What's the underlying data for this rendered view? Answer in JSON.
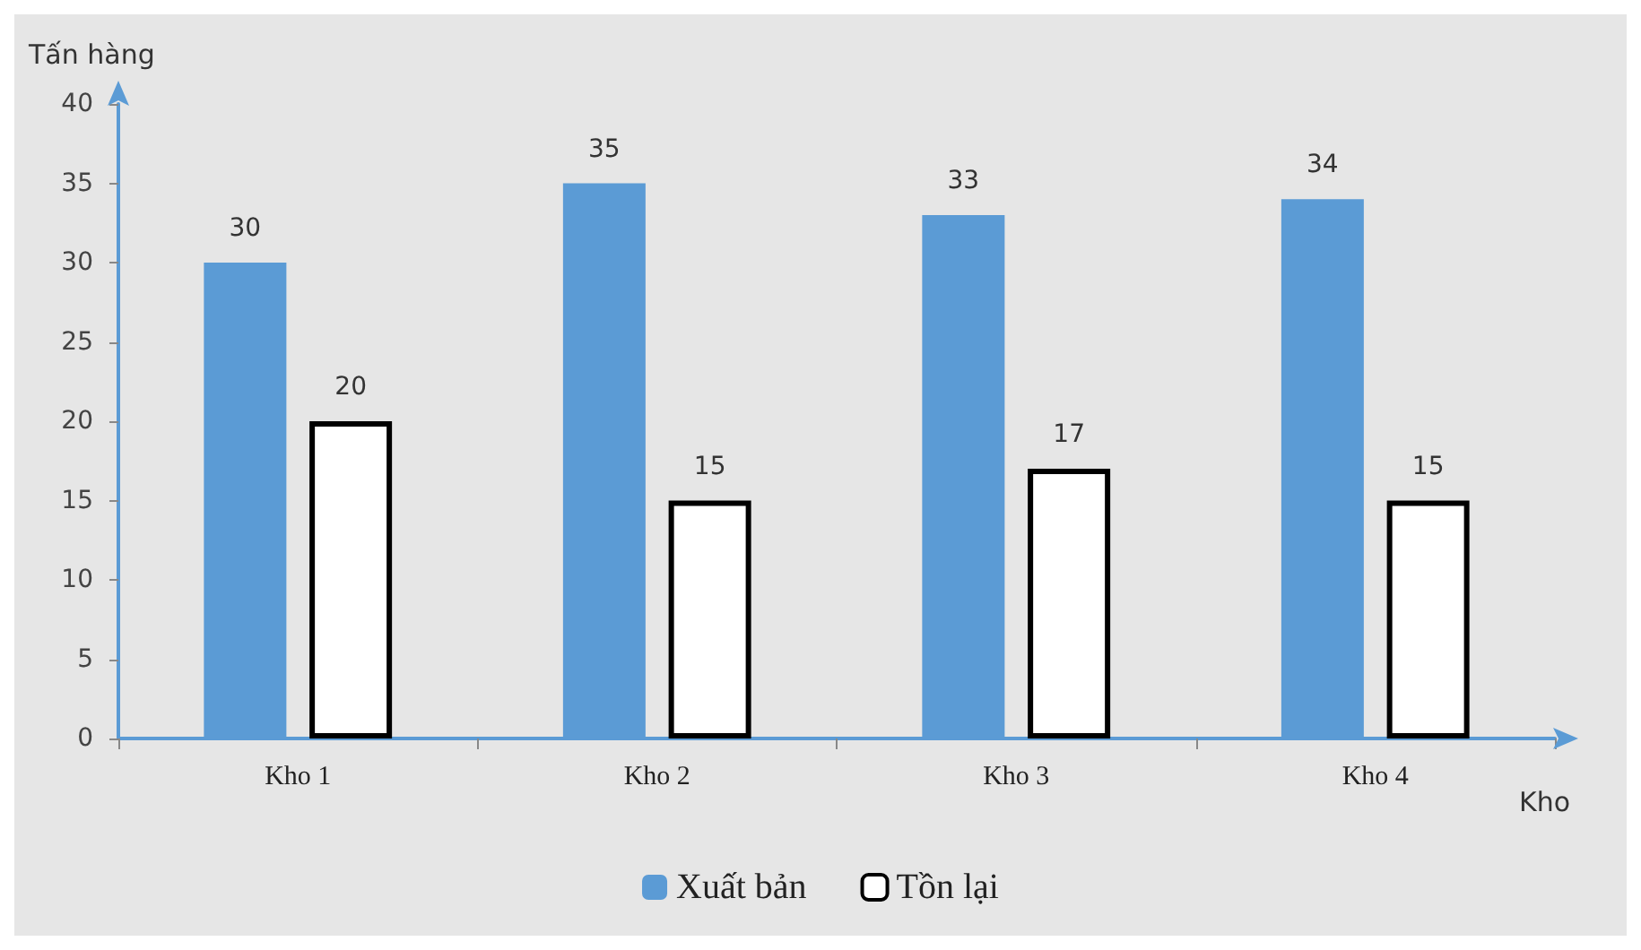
{
  "chart_data": {
    "type": "bar",
    "ylabel": "Tấn hàng",
    "xlabel": "Kho",
    "categories": [
      "Kho 1",
      "Kho 2",
      "Kho 3",
      "Kho 4"
    ],
    "series": [
      {
        "name": "Xuất bản",
        "color": "#5b9bd5",
        "values": [
          30,
          35,
          33,
          34
        ]
      },
      {
        "name": "Tồn lại",
        "color": "#ffffff",
        "values": [
          20,
          15,
          17,
          15
        ]
      }
    ],
    "ylim": [
      0,
      40
    ],
    "yticks": [
      0,
      5,
      10,
      15,
      20,
      25,
      30,
      35,
      40
    ],
    "grid": false,
    "legend": "bottom",
    "data_labels": true
  }
}
